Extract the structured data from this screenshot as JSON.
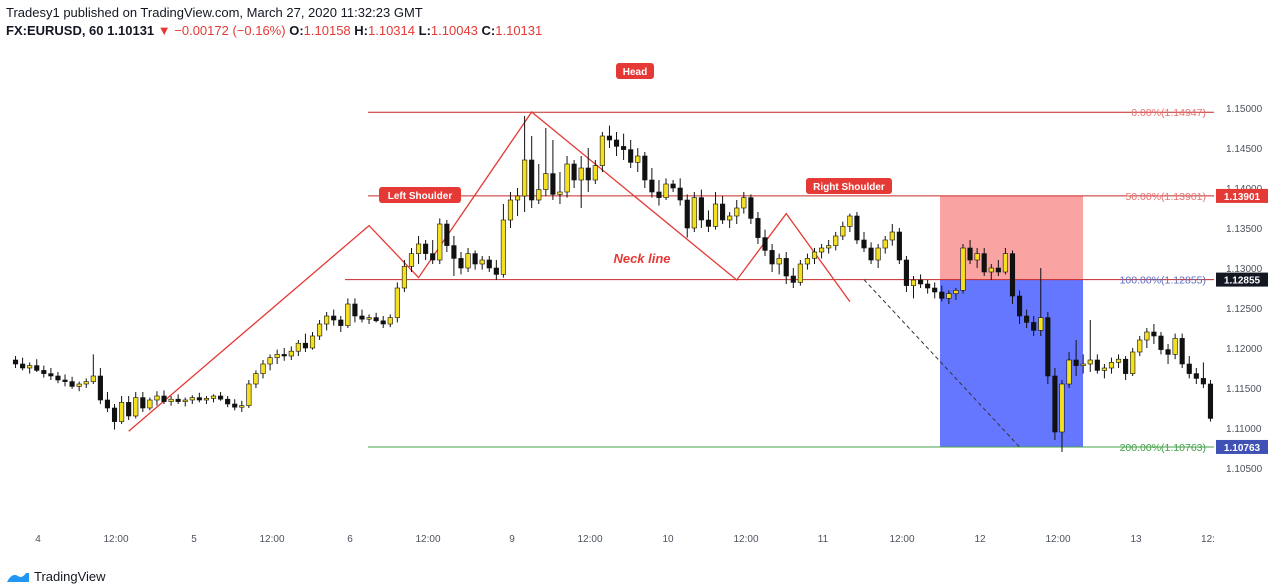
{
  "header": {
    "publish_line": "Tradesy1 published on TradingView.com, March 27, 2020 11:32:23 GMT",
    "symbol": "FX:EURUSD, 60",
    "last": "1.10131",
    "change": "▼ −0.00172 (−0.16%)",
    "o_label": "O:",
    "o_value": "1.10158",
    "h_label": "H:",
    "h_value": "1.10314",
    "l_label": "L:",
    "l_value": "1.10043",
    "c_label": "C:",
    "c_value": "1.10131"
  },
  "footer": {
    "brand": "TradingView",
    "logo_icon": "tradingview-logo-icon"
  },
  "colors": {
    "bull": "#f5e020",
    "bear": "#111111",
    "pattern_line": "#e53935",
    "fib_top": "#c62828",
    "fib_100": "#5c6bc0",
    "fib_200": "#43a047",
    "target_zone": "#6677ff",
    "stop_zone": "#f9a3a3"
  },
  "chart_data": {
    "type": "candlestick",
    "symbol": "FX:EURUSD",
    "timeframe": "60",
    "ylim": [
      1.1035,
      1.1535
    ],
    "y_ticks": [
      "1.15000",
      "1.14500",
      "1.14000",
      "1.13500",
      "1.13000",
      "1.12500",
      "1.12000",
      "1.11500",
      "1.11000",
      "1.10500"
    ],
    "x_ticks": [
      "4",
      "12:00",
      "5",
      "12:00",
      "6",
      "12:00",
      "9",
      "12:00",
      "10",
      "12:00",
      "11",
      "12:00",
      "12",
      "12:00",
      "13",
      "12:"
    ],
    "candles": [
      [
        1.1185,
        1.119,
        1.1175,
        1.118
      ],
      [
        1.118,
        1.1188,
        1.1172,
        1.1175
      ],
      [
        1.1175,
        1.1182,
        1.1168,
        1.1178
      ],
      [
        1.1178,
        1.1186,
        1.117,
        1.1172
      ],
      [
        1.1172,
        1.1178,
        1.1163,
        1.1168
      ],
      [
        1.1168,
        1.1175,
        1.116,
        1.1165
      ],
      [
        1.1165,
        1.117,
        1.1156,
        1.116
      ],
      [
        1.116,
        1.1167,
        1.1152,
        1.1158
      ],
      [
        1.1158,
        1.1164,
        1.1149,
        1.1152
      ],
      [
        1.1152,
        1.1158,
        1.1146,
        1.1155
      ],
      [
        1.1155,
        1.1162,
        1.115,
        1.1158
      ],
      [
        1.1158,
        1.1192,
        1.1155,
        1.1165
      ],
      [
        1.1165,
        1.1175,
        1.113,
        1.1135
      ],
      [
        1.1135,
        1.1145,
        1.112,
        1.1125
      ],
      [
        1.1125,
        1.113,
        1.1098,
        1.1108
      ],
      [
        1.1108,
        1.114,
        1.1105,
        1.1132
      ],
      [
        1.1132,
        1.114,
        1.111,
        1.1115
      ],
      [
        1.1115,
        1.1145,
        1.1112,
        1.1138
      ],
      [
        1.1138,
        1.1145,
        1.112,
        1.1125
      ],
      [
        1.1125,
        1.1138,
        1.1122,
        1.1135
      ],
      [
        1.1135,
        1.1146,
        1.1128,
        1.114
      ],
      [
        1.114,
        1.1147,
        1.113,
        1.1133
      ],
      [
        1.1133,
        1.114,
        1.1128,
        1.1136
      ],
      [
        1.1136,
        1.1142,
        1.113,
        1.1133
      ],
      [
        1.1133,
        1.1138,
        1.1127,
        1.1135
      ],
      [
        1.1135,
        1.1141,
        1.113,
        1.1138
      ],
      [
        1.1138,
        1.1144,
        1.1132,
        1.1135
      ],
      [
        1.1135,
        1.114,
        1.113,
        1.1137
      ],
      [
        1.1137,
        1.1142,
        1.1132,
        1.114
      ],
      [
        1.114,
        1.1145,
        1.1134,
        1.1136
      ],
      [
        1.1136,
        1.114,
        1.1126,
        1.113
      ],
      [
        1.113,
        1.1136,
        1.1122,
        1.1126
      ],
      [
        1.1126,
        1.1134,
        1.112,
        1.1128
      ],
      [
        1.1128,
        1.116,
        1.1125,
        1.1155
      ],
      [
        1.1155,
        1.1172,
        1.115,
        1.1168
      ],
      [
        1.1168,
        1.1185,
        1.1162,
        1.118
      ],
      [
        1.118,
        1.1192,
        1.1172,
        1.1188
      ],
      [
        1.1188,
        1.1198,
        1.118,
        1.1192
      ],
      [
        1.1192,
        1.12,
        1.1184,
        1.119
      ],
      [
        1.119,
        1.1202,
        1.1185,
        1.1196
      ],
      [
        1.1196,
        1.121,
        1.119,
        1.1206
      ],
      [
        1.1206,
        1.1218,
        1.1195,
        1.12
      ],
      [
        1.12,
        1.122,
        1.1198,
        1.1215
      ],
      [
        1.1215,
        1.1235,
        1.121,
        1.123
      ],
      [
        1.123,
        1.1245,
        1.1222,
        1.124
      ],
      [
        1.124,
        1.1248,
        1.1228,
        1.1235
      ],
      [
        1.1235,
        1.124,
        1.122,
        1.1228
      ],
      [
        1.1228,
        1.1262,
        1.1225,
        1.1255
      ],
      [
        1.1255,
        1.1262,
        1.1232,
        1.124
      ],
      [
        1.124,
        1.1248,
        1.1232,
        1.1236
      ],
      [
        1.1236,
        1.1242,
        1.123,
        1.1238
      ],
      [
        1.1238,
        1.1244,
        1.1232,
        1.1234
      ],
      [
        1.1234,
        1.124,
        1.1225,
        1.123
      ],
      [
        1.123,
        1.1242,
        1.1226,
        1.1238
      ],
      [
        1.1238,
        1.1282,
        1.1232,
        1.1275
      ],
      [
        1.1275,
        1.131,
        1.127,
        1.1302
      ],
      [
        1.1302,
        1.1325,
        1.1295,
        1.1318
      ],
      [
        1.1318,
        1.134,
        1.1305,
        1.133
      ],
      [
        1.133,
        1.1335,
        1.131,
        1.1318
      ],
      [
        1.1318,
        1.1335,
        1.1305,
        1.131
      ],
      [
        1.131,
        1.1362,
        1.1305,
        1.1355
      ],
      [
        1.1355,
        1.136,
        1.132,
        1.1328
      ],
      [
        1.1328,
        1.134,
        1.129,
        1.1312
      ],
      [
        1.1312,
        1.132,
        1.1292,
        1.13
      ],
      [
        1.13,
        1.1325,
        1.1295,
        1.1318
      ],
      [
        1.1318,
        1.1322,
        1.1298,
        1.1305
      ],
      [
        1.1305,
        1.1315,
        1.1298,
        1.131
      ],
      [
        1.131,
        1.1315,
        1.1295,
        1.13
      ],
      [
        1.13,
        1.131,
        1.1285,
        1.1292
      ],
      [
        1.1292,
        1.138,
        1.1288,
        1.136
      ],
      [
        1.136,
        1.1395,
        1.135,
        1.1385
      ],
      [
        1.1385,
        1.14,
        1.1365,
        1.139
      ],
      [
        1.139,
        1.149,
        1.137,
        1.1435
      ],
      [
        1.1435,
        1.1465,
        1.1375,
        1.1385
      ],
      [
        1.1385,
        1.143,
        1.138,
        1.1398
      ],
      [
        1.1398,
        1.1475,
        1.139,
        1.1418
      ],
      [
        1.1418,
        1.146,
        1.1385,
        1.1392
      ],
      [
        1.1392,
        1.142,
        1.138,
        1.1395
      ],
      [
        1.1395,
        1.144,
        1.1388,
        1.143
      ],
      [
        1.143,
        1.1435,
        1.14,
        1.141
      ],
      [
        1.141,
        1.144,
        1.1375,
        1.1425
      ],
      [
        1.1425,
        1.145,
        1.1395,
        1.141
      ],
      [
        1.141,
        1.1435,
        1.1405,
        1.1428
      ],
      [
        1.1428,
        1.147,
        1.142,
        1.1465
      ],
      [
        1.1465,
        1.1478,
        1.145,
        1.146
      ],
      [
        1.146,
        1.147,
        1.144,
        1.1452
      ],
      [
        1.1452,
        1.1468,
        1.1435,
        1.1448
      ],
      [
        1.1448,
        1.146,
        1.1425,
        1.1432
      ],
      [
        1.1432,
        1.145,
        1.142,
        1.144
      ],
      [
        1.144,
        1.1445,
        1.14,
        1.141
      ],
      [
        1.141,
        1.1425,
        1.1388,
        1.1395
      ],
      [
        1.1395,
        1.141,
        1.1378,
        1.1388
      ],
      [
        1.1388,
        1.1412,
        1.1385,
        1.1405
      ],
      [
        1.1405,
        1.141,
        1.1395,
        1.14
      ],
      [
        1.14,
        1.1412,
        1.1378,
        1.1385
      ],
      [
        1.1385,
        1.1392,
        1.1338,
        1.135
      ],
      [
        1.135,
        1.1395,
        1.1345,
        1.1388
      ],
      [
        1.1388,
        1.1398,
        1.135,
        1.136
      ],
      [
        1.136,
        1.1372,
        1.1345,
        1.1352
      ],
      [
        1.1352,
        1.1395,
        1.1348,
        1.138
      ],
      [
        1.138,
        1.139,
        1.1355,
        1.136
      ],
      [
        1.136,
        1.137,
        1.135,
        1.1365
      ],
      [
        1.1365,
        1.1385,
        1.1355,
        1.1375
      ],
      [
        1.1375,
        1.1395,
        1.1368,
        1.1388
      ],
      [
        1.1388,
        1.1392,
        1.1355,
        1.1362
      ],
      [
        1.1362,
        1.137,
        1.133,
        1.1338
      ],
      [
        1.1338,
        1.1348,
        1.1315,
        1.1322
      ],
      [
        1.1322,
        1.133,
        1.1295,
        1.1305
      ],
      [
        1.1305,
        1.1318,
        1.1292,
        1.1312
      ],
      [
        1.1312,
        1.132,
        1.128,
        1.129
      ],
      [
        1.129,
        1.13,
        1.1275,
        1.1282
      ],
      [
        1.1282,
        1.131,
        1.1278,
        1.1305
      ],
      [
        1.1305,
        1.1318,
        1.1298,
        1.1312
      ],
      [
        1.1312,
        1.1325,
        1.1305,
        1.132
      ],
      [
        1.132,
        1.133,
        1.1312,
        1.1325
      ],
      [
        1.1325,
        1.1335,
        1.1318,
        1.1328
      ],
      [
        1.1328,
        1.1345,
        1.1322,
        1.134
      ],
      [
        1.134,
        1.1358,
        1.1335,
        1.1352
      ],
      [
        1.1352,
        1.1368,
        1.1345,
        1.1365
      ],
      [
        1.1365,
        1.137,
        1.133,
        1.1335
      ],
      [
        1.1335,
        1.1345,
        1.132,
        1.1325
      ],
      [
        1.1325,
        1.1332,
        1.1305,
        1.131
      ],
      [
        1.131,
        1.133,
        1.13,
        1.1325
      ],
      [
        1.1325,
        1.134,
        1.1318,
        1.1335
      ],
      [
        1.1335,
        1.1355,
        1.1328,
        1.1345
      ],
      [
        1.1345,
        1.135,
        1.1305,
        1.131
      ],
      [
        1.131,
        1.1315,
        1.127,
        1.1278
      ],
      [
        1.1278,
        1.129,
        1.1262,
        1.1285
      ],
      [
        1.1285,
        1.1292,
        1.1275,
        1.128
      ],
      [
        1.128,
        1.1285,
        1.1268,
        1.1275
      ],
      [
        1.1275,
        1.1282,
        1.1262,
        1.127
      ],
      [
        1.127,
        1.1278,
        1.1258,
        1.1262
      ],
      [
        1.1262,
        1.1272,
        1.1255,
        1.1268
      ],
      [
        1.1268,
        1.1275,
        1.126,
        1.1272
      ],
      [
        1.1272,
        1.133,
        1.1268,
        1.1325
      ],
      [
        1.1325,
        1.1335,
        1.1305,
        1.131
      ],
      [
        1.131,
        1.1325,
        1.13,
        1.1318
      ],
      [
        1.1318,
        1.1325,
        1.129,
        1.1295
      ],
      [
        1.1295,
        1.1305,
        1.1285,
        1.13
      ],
      [
        1.13,
        1.131,
        1.129,
        1.1295
      ],
      [
        1.1295,
        1.1325,
        1.1292,
        1.1318
      ],
      [
        1.1318,
        1.1322,
        1.1255,
        1.1265
      ],
      [
        1.1265,
        1.1272,
        1.123,
        1.124
      ],
      [
        1.124,
        1.1248,
        1.1225,
        1.1232
      ],
      [
        1.1232,
        1.124,
        1.1215,
        1.1222
      ],
      [
        1.1222,
        1.13,
        1.1215,
        1.1238
      ],
      [
        1.1238,
        1.1245,
        1.1155,
        1.1165
      ],
      [
        1.1165,
        1.1175,
        1.1085,
        1.1095
      ],
      [
        1.1095,
        1.116,
        1.107,
        1.1155
      ],
      [
        1.1155,
        1.1195,
        1.115,
        1.1185
      ],
      [
        1.1185,
        1.121,
        1.1165,
        1.1178
      ],
      [
        1.1178,
        1.1192,
        1.1168,
        1.118
      ],
      [
        1.118,
        1.1235,
        1.117,
        1.1185
      ],
      [
        1.1185,
        1.1192,
        1.1168,
        1.1172
      ],
      [
        1.1172,
        1.118,
        1.1162,
        1.1175
      ],
      [
        1.1175,
        1.1188,
        1.1168,
        1.1182
      ],
      [
        1.1182,
        1.1192,
        1.1175,
        1.1186
      ],
      [
        1.1186,
        1.119,
        1.116,
        1.1168
      ],
      [
        1.1168,
        1.12,
        1.1165,
        1.1195
      ],
      [
        1.1195,
        1.1215,
        1.119,
        1.121
      ],
      [
        1.121,
        1.1225,
        1.12,
        1.122
      ],
      [
        1.122,
        1.123,
        1.1205,
        1.1215
      ],
      [
        1.1215,
        1.122,
        1.1192,
        1.1198
      ],
      [
        1.1198,
        1.1205,
        1.118,
        1.1192
      ],
      [
        1.1192,
        1.1218,
        1.1186,
        1.1212
      ],
      [
        1.1212,
        1.1218,
        1.1175,
        1.118
      ],
      [
        1.118,
        1.119,
        1.1162,
        1.1168
      ],
      [
        1.1168,
        1.1175,
        1.1155,
        1.1162
      ],
      [
        1.1162,
        1.1182,
        1.115,
        1.1155
      ],
      [
        1.1155,
        1.116,
        1.1108,
        1.1112
      ]
    ],
    "fib_levels": [
      {
        "label": "0.00%(1.14947)",
        "value": 1.14947
      },
      {
        "label": "50.00%(1.13901)",
        "value": 1.13901
      },
      {
        "label": "100.00%(1.12855)",
        "value": 1.12855
      },
      {
        "label": "200.00%(1.10763)",
        "value": 1.10763
      }
    ],
    "price_tags": [
      {
        "text": "1.13901",
        "value": 1.13901,
        "bg": "#e53935"
      },
      {
        "text": "1.12855",
        "value": 1.12855,
        "bg": "#131722"
      },
      {
        "text": "1.10763",
        "value": 1.10763,
        "bg": "#3f51b5"
      }
    ],
    "pattern_labels": {
      "head": "Head",
      "left_shoulder": "Left Shoulder",
      "right_shoulder": "Right Shoulder",
      "neckline": "Neck line"
    }
  }
}
